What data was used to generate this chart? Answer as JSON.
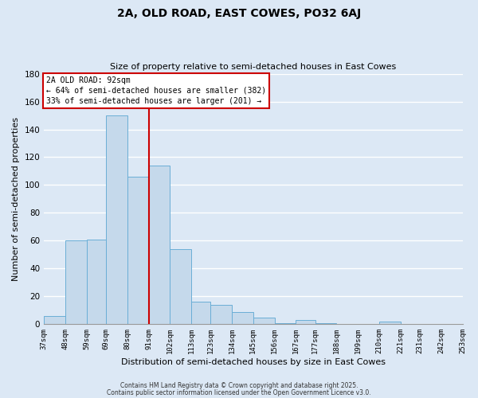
{
  "title_line1": "2A, OLD ROAD, EAST COWES, PO32 6AJ",
  "title_line2": "Size of property relative to semi-detached houses in East Cowes",
  "xlabel": "Distribution of semi-detached houses by size in East Cowes",
  "ylabel": "Number of semi-detached properties",
  "bar_left_edges": [
    37,
    48,
    59,
    69,
    80,
    91,
    102,
    113,
    123,
    134,
    145,
    156,
    167,
    177,
    188,
    199,
    210,
    221,
    231,
    242
  ],
  "bar_widths": [
    11,
    11,
    10,
    11,
    11,
    11,
    11,
    10,
    11,
    11,
    11,
    11,
    10,
    11,
    11,
    11,
    11,
    10,
    11,
    11
  ],
  "bar_heights": [
    6,
    60,
    61,
    150,
    106,
    114,
    54,
    16,
    14,
    9,
    5,
    1,
    3,
    1,
    0,
    0,
    2,
    0,
    0,
    0
  ],
  "bar_color": "#c5d9eb",
  "bar_edgecolor": "#6aaed6",
  "vline_x": 91,
  "vline_color": "#cc0000",
  "xtick_labels": [
    "37sqm",
    "48sqm",
    "59sqm",
    "69sqm",
    "80sqm",
    "91sqm",
    "102sqm",
    "113sqm",
    "123sqm",
    "134sqm",
    "145sqm",
    "156sqm",
    "167sqm",
    "177sqm",
    "188sqm",
    "199sqm",
    "210sqm",
    "221sqm",
    "231sqm",
    "242sqm",
    "253sqm"
  ],
  "xtick_positions": [
    37,
    48,
    59,
    69,
    80,
    91,
    102,
    113,
    123,
    134,
    145,
    156,
    167,
    177,
    188,
    199,
    210,
    221,
    231,
    242,
    253
  ],
  "ylim": [
    0,
    180
  ],
  "yticks": [
    0,
    20,
    40,
    60,
    80,
    100,
    120,
    140,
    160,
    180
  ],
  "annotation_title": "2A OLD ROAD: 92sqm",
  "annotation_line1": "← 64% of semi-detached houses are smaller (382)",
  "annotation_line2": "33% of semi-detached houses are larger (201) →",
  "annotation_box_color": "#ffffff",
  "annotation_box_edgecolor": "#cc0000",
  "background_color": "#dce8f5",
  "grid_color": "#ffffff",
  "footer_line1": "Contains HM Land Registry data © Crown copyright and database right 2025.",
  "footer_line2": "Contains public sector information licensed under the Open Government Licence v3.0."
}
